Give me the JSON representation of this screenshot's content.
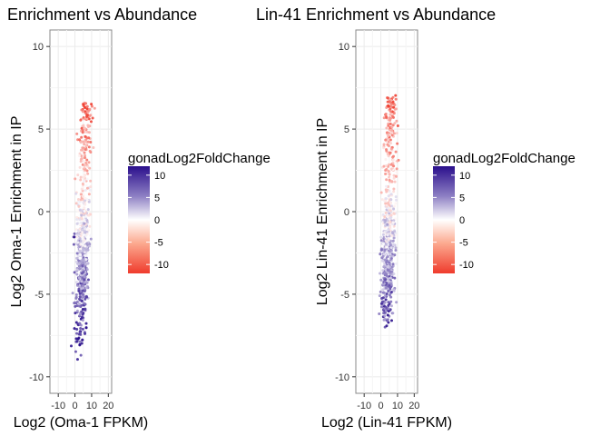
{
  "chart_data": [
    {
      "type": "scatter",
      "title": "Enrichment vs Abundance",
      "xlabel": "Log2 (Oma-1 FPKM)",
      "ylabel": "Log2 Oma-1 Enrichment in IP",
      "xlim": [
        -15,
        22
      ],
      "ylim": [
        -11,
        11
      ],
      "xticks": [
        "-10",
        "0",
        "10",
        "20"
      ],
      "yticks": [
        "-10",
        "-5",
        "0",
        "5",
        "10"
      ],
      "grid": true,
      "color_variable": "gonadLog2FoldChange",
      "color_scale": {
        "low": -12,
        "mid": 0,
        "high": 12,
        "low_color": "#ef3b2c",
        "mid_color": "#ffffff",
        "high_color": "#2a0f8c"
      },
      "legend": {
        "title": "gonadLog2FoldChange",
        "ticks": [
          "10",
          "5",
          "0",
          "-5",
          "-10"
        ],
        "position": "right"
      },
      "cloud": {
        "x_center": 5,
        "x_spread": 4.5,
        "y_min": -9,
        "y_max": 6.6,
        "n": 700,
        "seed": 7
      }
    },
    {
      "type": "scatter",
      "title": "Lin-41 Enrichment vs Abundance",
      "xlabel": "Log2 (Lin-41 FPKM)",
      "ylabel": "Log2 Lin-41 Enrichment in IP",
      "xlim": [
        -15,
        22
      ],
      "ylim": [
        -11,
        11
      ],
      "xticks": [
        "-10",
        "0",
        "10",
        "20"
      ],
      "yticks": [
        "-10",
        "-5",
        "0",
        "5",
        "10"
      ],
      "grid": true,
      "color_variable": "gonadLog2FoldChange",
      "color_scale": {
        "low": -12,
        "mid": 0,
        "high": 12,
        "low_color": "#ef3b2c",
        "mid_color": "#ffffff",
        "high_color": "#2a0f8c"
      },
      "legend": {
        "title": "gonadLog2FoldChange",
        "ticks": [
          "10",
          "5",
          "0",
          "-5",
          "-10"
        ],
        "position": "right"
      },
      "cloud": {
        "x_center": 5,
        "x_spread": 4.5,
        "y_min": -7,
        "y_max": 7.2,
        "n": 700,
        "seed": 19
      }
    }
  ]
}
